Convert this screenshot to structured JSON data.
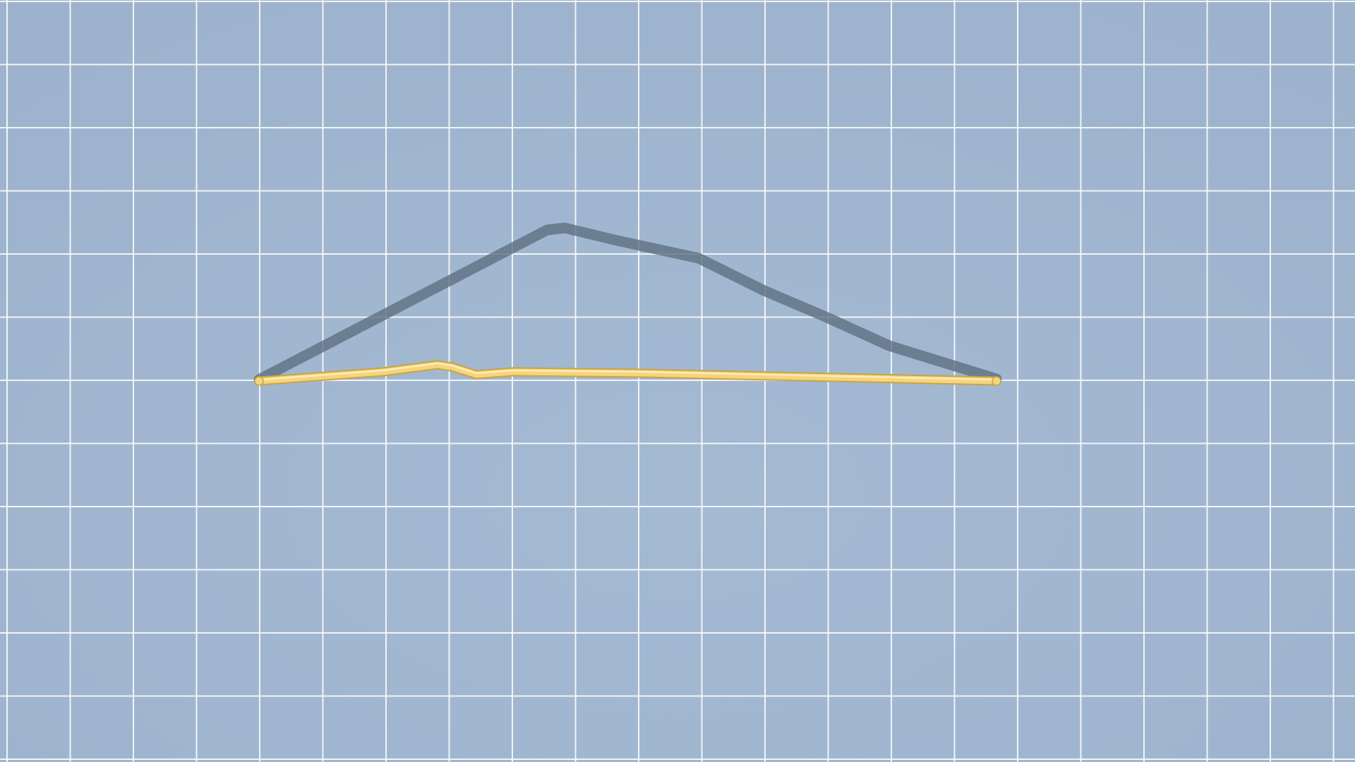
{
  "scene": {
    "type": "2d-grid-canvas",
    "background_color": "#9db3cd",
    "vignette_center_color": "#a4bad3",
    "grid": {
      "visible": true,
      "line_color": "#ffffff"
    },
    "shapes": [
      {
        "name": "bent-line-shadow",
        "color": "#5f6f82",
        "opacity": 0.8,
        "style": "flat"
      },
      {
        "name": "bent-line",
        "color": "#f5d47e",
        "highlight_color": "#fff4c8",
        "edge_color": "#c9a443",
        "style": "tube"
      }
    ]
  }
}
